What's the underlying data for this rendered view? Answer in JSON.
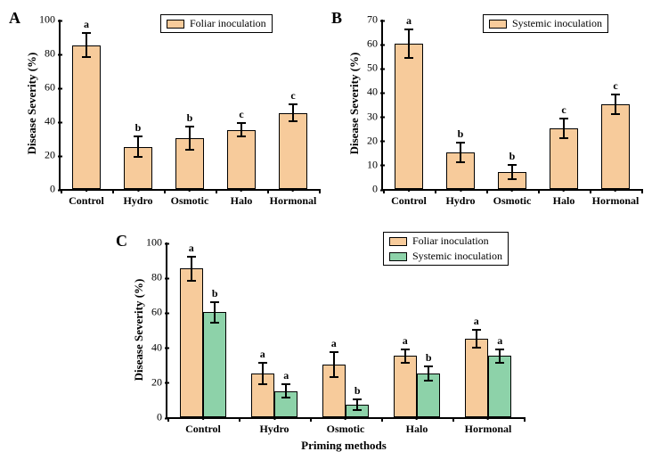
{
  "colors": {
    "foliar": "#f7cb9b",
    "systemic": "#8dd2a9",
    "axis": "#000000",
    "bg": "#ffffff"
  },
  "xlabel_global": "Priming methods",
  "panels": {
    "A": {
      "label": "A",
      "ylabel": "Disease Severity (%)",
      "ymax": 100,
      "ytick_step": 20,
      "legend": [
        {
          "label": "Foliar inoculation",
          "colorKey": "foliar"
        }
      ],
      "categories": [
        "Control",
        "Hydro",
        "Osmotic",
        "Halo",
        "Hormonal"
      ],
      "series": [
        {
          "colorKey": "foliar",
          "values": [
            85,
            25,
            30,
            35,
            45
          ],
          "errors": [
            7,
            6,
            7,
            4,
            5
          ],
          "sig": [
            "a",
            "b",
            "b",
            "c",
            "c"
          ]
        }
      ]
    },
    "B": {
      "label": "B",
      "ylabel": "Disease Severity (%)",
      "ymax": 70,
      "ytick_step": 10,
      "legend": [
        {
          "label": "Systemic inoculation",
          "colorKey": "foliar"
        }
      ],
      "categories": [
        "Control",
        "Hydro",
        "Osmotic",
        "Halo",
        "Hormonal"
      ],
      "series": [
        {
          "colorKey": "foliar",
          "values": [
            60,
            15,
            7,
            25,
            35
          ],
          "errors": [
            6,
            4,
            3,
            4,
            4
          ],
          "sig": [
            "a",
            "b",
            "b",
            "c",
            "c"
          ]
        }
      ]
    },
    "C": {
      "label": "C",
      "ylabel": "Disease Severity (%)",
      "ymax": 100,
      "ytick_step": 20,
      "legend": [
        {
          "label": "Foliar inoculation",
          "colorKey": "foliar"
        },
        {
          "label": "Systemic inoculation",
          "colorKey": "systemic"
        }
      ],
      "categories": [
        "Control",
        "Hydro",
        "Osmotic",
        "Halo",
        "Hormonal"
      ],
      "series": [
        {
          "colorKey": "foliar",
          "values": [
            85,
            25,
            30,
            35,
            45
          ],
          "errors": [
            7,
            6,
            7,
            4,
            5
          ],
          "sig": [
            "a",
            "a",
            "a",
            "a",
            "a"
          ]
        },
        {
          "colorKey": "systemic",
          "values": [
            60,
            15,
            7,
            25,
            35
          ],
          "errors": [
            6,
            4,
            3,
            4,
            4
          ],
          "sig": [
            "b",
            "a",
            "b",
            "b",
            "a"
          ]
        }
      ]
    }
  }
}
